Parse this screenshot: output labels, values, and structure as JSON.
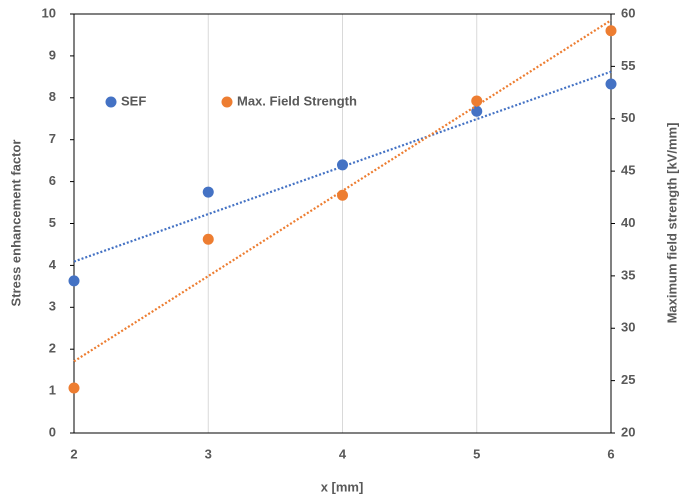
{
  "chart_data": {
    "type": "scatter",
    "x_label": "x [mm]",
    "y_label": "Stress enhancement factor",
    "y2_label": "Maximum field strength [kV/mm]",
    "xlim": [
      2,
      6
    ],
    "xticks": [
      2,
      3,
      4,
      5,
      6
    ],
    "ylim": [
      0,
      10
    ],
    "yticks": [
      0,
      1,
      2,
      3,
      4,
      5,
      6,
      7,
      8,
      9,
      10
    ],
    "y2lim": [
      20,
      60
    ],
    "y2ticks": [
      20,
      25,
      30,
      35,
      40,
      45,
      50,
      55,
      60
    ],
    "grid": "x",
    "legend": "upper left",
    "trendline": "linear",
    "series": [
      {
        "name": "SEF",
        "color": "#4472c4",
        "x": [
          2,
          3,
          4,
          5,
          6
        ],
        "values": [
          3.63,
          5.75,
          6.4,
          7.68,
          8.33
        ]
      },
      {
        "name": "Max. Field Strength",
        "color": "#ed7d31",
        "axis": "y2",
        "x": [
          2,
          3,
          4,
          5,
          6
        ],
        "values": [
          24.3,
          38.5,
          42.7,
          51.7,
          58.4
        ]
      }
    ]
  }
}
